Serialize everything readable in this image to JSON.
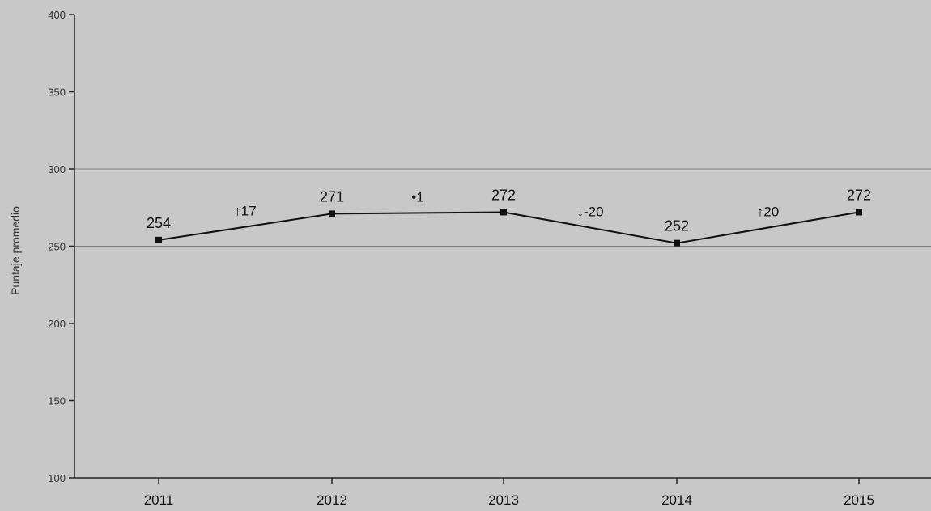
{
  "chart_data": {
    "type": "line",
    "title": "",
    "xlabel": "",
    "ylabel": "Puntaje promedio",
    "categories": [
      "2011",
      "2012",
      "2013",
      "2014",
      "2015"
    ],
    "series": [
      {
        "values": [
          254,
          271,
          272,
          252,
          272
        ]
      }
    ],
    "data_labels": [
      "254",
      "271",
      "272",
      "252",
      "272"
    ],
    "change_labels": [
      "↑17",
      "•1",
      "↓-20",
      "↑20"
    ],
    "ylim": [
      100,
      400
    ],
    "yticks": [
      "100",
      "150",
      "200",
      "250",
      "300",
      "350",
      "400"
    ],
    "grid": "horizontal at 250 and 300",
    "colors": {
      "background": "#c8c8c8",
      "line": "#111111",
      "axis": "#222222",
      "grid": "#808080"
    }
  }
}
